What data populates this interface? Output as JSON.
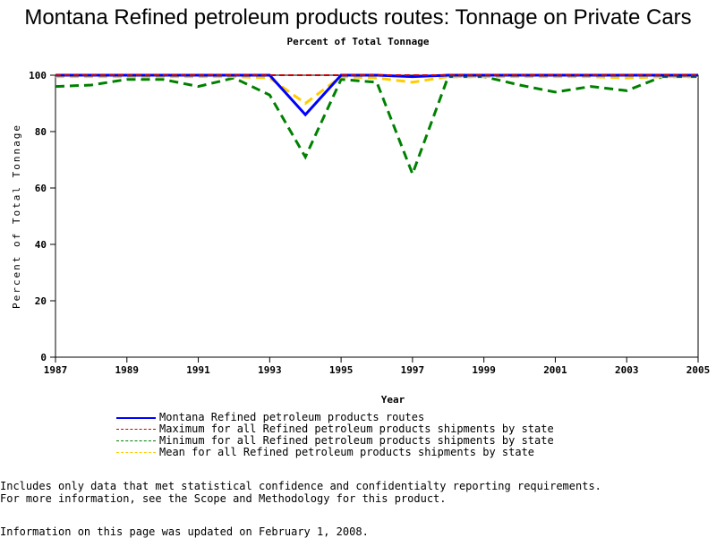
{
  "chart_data": {
    "type": "line",
    "title": "Montana Refined petroleum products routes: Tonnage on Private Cars",
    "subtitle": "Percent of Total Tonnage",
    "xlabel": "Year",
    "ylabel": "Percent of Total Tonnage",
    "x": [
      1987,
      1988,
      1989,
      1990,
      1991,
      1992,
      1993,
      1994,
      1995,
      1996,
      1997,
      1998,
      1999,
      2000,
      2001,
      2002,
      2003,
      2004,
      2005
    ],
    "xticks": [
      "1987",
      "1989",
      "1991",
      "1993",
      "1995",
      "1997",
      "1999",
      "2001",
      "2003",
      "2005"
    ],
    "yticks": [
      "0",
      "20",
      "40",
      "60",
      "80",
      "100"
    ],
    "xlim": [
      1987,
      2005
    ],
    "ylim": [
      0,
      100
    ],
    "grid": false,
    "series": [
      {
        "name": "Montana Refined petroleum products routes",
        "color": "#0000ff",
        "dash": "solid",
        "values": [
          100,
          100,
          100,
          100,
          100,
          100,
          100,
          86,
          100,
          100,
          99.5,
          100,
          100,
          100,
          100,
          100,
          100,
          100,
          100
        ]
      },
      {
        "name": "Maximum for all Refined petroleum products shipments by state",
        "color": "#cc0000",
        "dash": "dashed",
        "values": [
          100,
          100,
          100,
          100,
          100,
          100,
          100,
          100,
          100,
          100,
          100,
          100,
          100,
          100,
          100,
          100,
          100,
          100,
          100
        ]
      },
      {
        "name": "Minimum for all Refined petroleum products shipments by state",
        "color": "#008000",
        "dash": "dashed",
        "values": [
          96,
          96.5,
          98.5,
          98.5,
          96,
          99,
          93,
          71,
          98.5,
          97.5,
          65,
          99.5,
          99.5,
          96.5,
          94,
          96,
          94.5,
          99.5,
          99.5
        ]
      },
      {
        "name": "Mean for all Refined petroleum products shipments by state",
        "color": "#ffcc00",
        "dash": "dashed",
        "values": [
          99.5,
          99.5,
          99.5,
          99.5,
          99.5,
          99.5,
          99,
          90,
          99.5,
          99,
          97.5,
          99.5,
          99.5,
          99.5,
          99.5,
          99.5,
          99,
          99.5,
          99.5
        ]
      }
    ],
    "legend_position": "bottom"
  },
  "footnotes": {
    "line1": "Includes only data that met statistical confidence and confidentialty reporting requirements.",
    "line2": "For more information, see the Scope and Methodology for this product.",
    "updated": "Information on this page was updated on February 1, 2008."
  }
}
